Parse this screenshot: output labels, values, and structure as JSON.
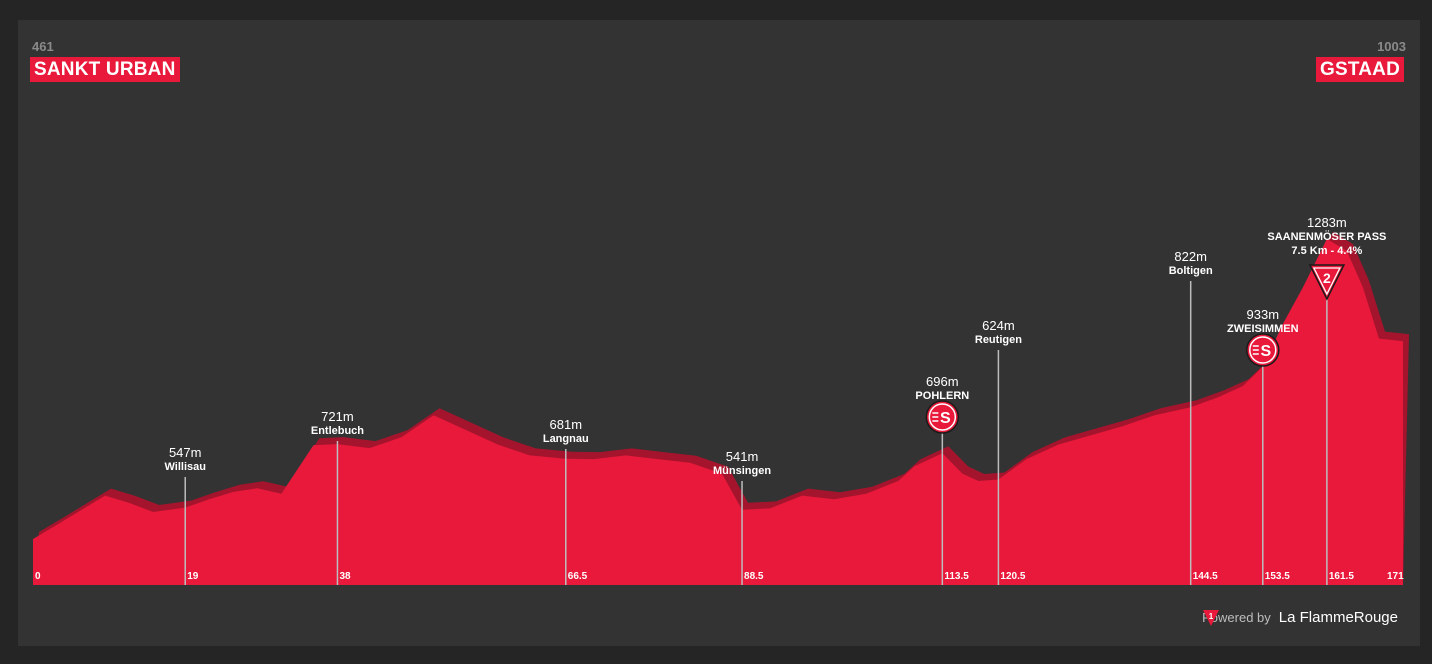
{
  "start": {
    "name": "SANKT URBAN",
    "altitude": "461"
  },
  "finish": {
    "name": "GSTAAD",
    "altitude": "1003"
  },
  "footer": {
    "powered_by": "Powered by",
    "brand": "La FlammeRouge",
    "flag_number": "1"
  },
  "colors": {
    "profile": "#e8193a",
    "profile_shadow": "#a5142d",
    "background": "#333333",
    "outer": "#252525",
    "label_bg": "#e8193a"
  },
  "chart_data": {
    "type": "area",
    "xlabel": "",
    "ylabel": "",
    "xlim": [
      0,
      171
    ],
    "ylim": [
      400,
      1400
    ],
    "profile": {
      "distance": [
        0,
        3,
        6,
        9,
        12,
        15,
        19,
        22,
        25,
        28,
        31,
        35,
        38,
        42,
        46,
        50,
        54,
        58,
        62,
        66.5,
        70,
        74,
        78,
        82,
        86,
        88.5,
        92,
        96,
        100,
        104,
        108,
        110,
        113.5,
        116,
        118,
        120.5,
        124,
        128,
        132,
        136,
        140,
        144.5,
        148,
        151,
        153.5,
        156,
        158.5,
        161.5,
        164,
        166,
        168,
        171
      ],
      "elevation": [
        461,
        500,
        540,
        580,
        560,
        535,
        547,
        570,
        590,
        600,
        585,
        718,
        721,
        710,
        740,
        800,
        760,
        720,
        690,
        681,
        680,
        690,
        680,
        670,
        640,
        541,
        545,
        580,
        570,
        585,
        620,
        660,
        696,
        640,
        620,
        624,
        680,
        720,
        745,
        770,
        800,
        822,
        850,
        880,
        933,
        1050,
        1150,
        1283,
        1250,
        1150,
        1010,
        1003
      ]
    },
    "waypoints": [
      {
        "km": 19,
        "km_label": "19",
        "altitude": 547,
        "alt_label": "547m",
        "name": "Willisau",
        "marker": "none"
      },
      {
        "km": 38,
        "km_label": "38",
        "altitude": 721,
        "alt_label": "721m",
        "name": "Entlebuch",
        "marker": "none"
      },
      {
        "km": 66.5,
        "km_label": "66.5",
        "altitude": 681,
        "alt_label": "681m",
        "name": "Langnau",
        "marker": "none"
      },
      {
        "km": 88.5,
        "km_label": "88.5",
        "altitude": 541,
        "alt_label": "541m",
        "name": "Münsingen",
        "marker": "none"
      },
      {
        "km": 113.5,
        "km_label": "113.5",
        "altitude": 696,
        "alt_label": "696m",
        "name": "POHLERN",
        "marker": "sprint"
      },
      {
        "km": 120.5,
        "km_label": "120.5",
        "altitude": 624,
        "alt_label": "624m",
        "name": "Reutigen",
        "marker": "none"
      },
      {
        "km": 144.5,
        "km_label": "144.5",
        "altitude": 822,
        "alt_label": "822m",
        "name": "Boltigen",
        "marker": "none"
      },
      {
        "km": 153.5,
        "km_label": "153.5",
        "altitude": 933,
        "alt_label": "933m",
        "name": "ZWEISIMMEN",
        "marker": "sprint"
      },
      {
        "km": 161.5,
        "km_label": "161.5",
        "altitude": 1283,
        "alt_label": "1283m",
        "name": "SAANENMÖSER PASS",
        "detail": "7.5 Km - 4.4%",
        "marker": "kom",
        "category": "2"
      }
    ],
    "km_ticks": [
      {
        "km": 0,
        "label": "0"
      },
      {
        "km": 171,
        "label": "171"
      }
    ]
  }
}
